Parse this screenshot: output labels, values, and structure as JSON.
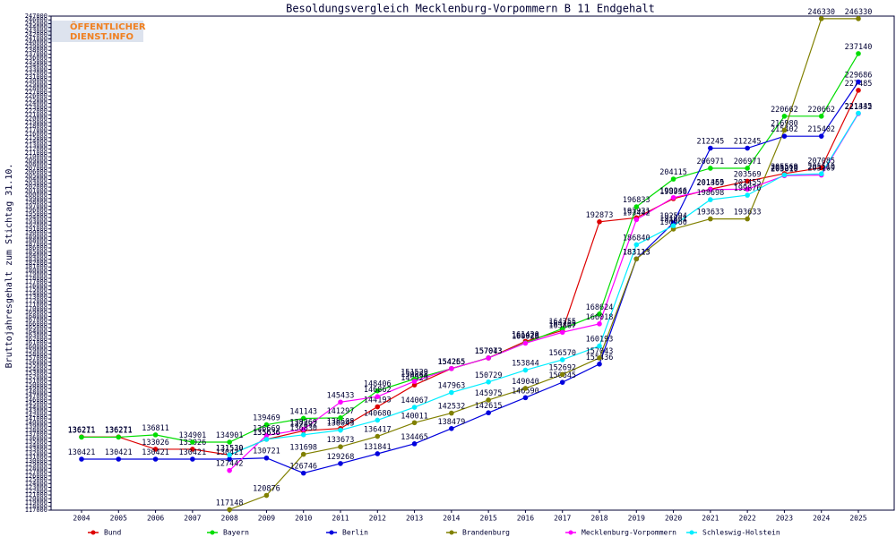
{
  "chart_data": {
    "type": "line",
    "title": "Besoldungsvergleich Mecklenburg-Vorpommern B 11 Endgehalt",
    "ylabel": "Bruttojahresgehalt zum Stichtag 31.10.",
    "logo": [
      "ÖFFENTLICHER",
      "DIENST.INFO"
    ],
    "categories": [
      "2004",
      "2005",
      "2006",
      "2007",
      "2008",
      "2009",
      "2010",
      "2011",
      "2012",
      "2013",
      "2014",
      "2015",
      "2016",
      "2017",
      "2018",
      "2019",
      "2020",
      "2021",
      "2022",
      "2023",
      "2024",
      "2025"
    ],
    "ylim": [
      117000,
      247000
    ],
    "yticks": [
      117000,
      118000,
      119000,
      120000,
      121000,
      122000,
      123000,
      124000,
      125000,
      126000,
      127000,
      128000,
      129000,
      130000,
      131000,
      132000,
      133000,
      134000,
      135000,
      136000,
      137000,
      138000,
      139000,
      140000,
      141000,
      142000,
      143000,
      144000,
      145000,
      146000,
      147000,
      148000,
      149000,
      150000,
      151000,
      152000,
      153000,
      154000,
      155000,
      156000,
      157000,
      158000,
      159000,
      160000,
      161000,
      162000,
      163000,
      164000,
      165000,
      166000,
      167000,
      168000,
      169000,
      170000,
      171000,
      172000,
      173000,
      174000,
      175000,
      176000,
      177000,
      178000,
      179000,
      180000,
      181000,
      182000,
      183000,
      184000,
      185000,
      186000,
      187000,
      188000,
      189000,
      190000,
      191000,
      192000,
      193000,
      194000,
      195000,
      196000,
      197000,
      198000,
      199000,
      200000,
      201000,
      202000,
      203000,
      204000,
      205000,
      206000,
      207000,
      208000,
      209000,
      210000,
      211000,
      212000,
      213000,
      214000,
      215000,
      216000,
      217000,
      218000,
      219000,
      220000,
      221000,
      222000,
      223000,
      224000,
      225000,
      226000,
      227000,
      228000,
      229000,
      230000,
      231000,
      232000,
      233000,
      234000,
      235000,
      236000,
      237000,
      238000,
      239000,
      240000,
      241000,
      242000,
      243000,
      244000,
      245000,
      246000,
      247000
    ],
    "series": [
      {
        "name": "Bund",
        "color": "#dd0000",
        "values": [
          136271,
          136271,
          133026,
          133026,
          131530,
          135636,
          137892,
          138508,
          144193,
          149929,
          154265,
          157043,
          161420,
          164265,
          192873,
          193931,
          198958,
          201455,
          203569,
          205569,
          207085,
          227485
        ]
      },
      {
        "name": "Bayern",
        "color": "#00dd00",
        "values": [
          136211,
          136211,
          136811,
          134901,
          134901,
          139469,
          141143,
          141297,
          148406,
          151529,
          154255,
          157073,
          161026,
          164755,
          168624,
          196833,
          204115,
          206971,
          206971,
          220662,
          220662,
          237140
        ]
      },
      {
        "name": "Berlin",
        "color": "#0000dd",
        "values": [
          130421,
          130421,
          130421,
          130421,
          130421,
          130721,
          126746,
          129268,
          131841,
          134465,
          138479,
          142615,
          146590,
          150645,
          155436,
          183113,
          192594,
          212245,
          212245,
          215402,
          215402,
          229686
        ]
      },
      {
        "name": "Brandenburg",
        "color": "#808000",
        "values": [
          null,
          null,
          null,
          null,
          117148,
          120876,
          131698,
          133673,
          136417,
          140011,
          142532,
          145975,
          149040,
          152692,
          157043,
          183113,
          190960,
          193633,
          193633,
          216980,
          246330,
          246330
        ]
      },
      {
        "name": "Mecklenburg-Vorpommern",
        "color": "#ff00ff",
        "values": [
          null,
          null,
          null,
          null,
          127442,
          136669,
          138269,
          145433,
          146862,
          150888,
          154265,
          157043,
          160928,
          163807,
          166018,
          193442,
          199246,
          201369,
          201455,
          205010,
          205169,
          221332
        ]
      },
      {
        "name": "Schleswig-Holstein",
        "color": "#00eeff",
        "values": [
          null,
          null,
          null,
          null,
          131530,
          135636,
          136830,
          138043,
          140680,
          144067,
          147963,
          150729,
          153844,
          156570,
          160193,
          186840,
          191861,
          198698,
          199876,
          205219,
          205510,
          221445
        ]
      }
    ]
  }
}
